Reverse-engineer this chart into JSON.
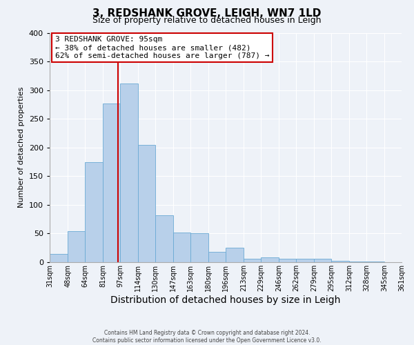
{
  "title": "3, REDSHANK GROVE, LEIGH, WN7 1LD",
  "subtitle": "Size of property relative to detached houses in Leigh",
  "xlabel": "Distribution of detached houses by size in Leigh",
  "ylabel": "Number of detached properties",
  "bin_labels": [
    "31sqm",
    "48sqm",
    "64sqm",
    "81sqm",
    "97sqm",
    "114sqm",
    "130sqm",
    "147sqm",
    "163sqm",
    "180sqm",
    "196sqm",
    "213sqm",
    "229sqm",
    "246sqm",
    "262sqm",
    "279sqm",
    "295sqm",
    "312sqm",
    "328sqm",
    "345sqm",
    "361sqm"
  ],
  "bin_edges": [
    31,
    48,
    64,
    81,
    97,
    114,
    130,
    147,
    163,
    180,
    196,
    213,
    229,
    246,
    262,
    279,
    295,
    312,
    328,
    345,
    361
  ],
  "bar_heights": [
    14,
    54,
    175,
    277,
    312,
    204,
    82,
    52,
    50,
    18,
    25,
    6,
    9,
    6,
    6,
    6,
    2,
    1,
    1,
    0
  ],
  "bar_color": "#b8d0ea",
  "bar_edge_color": "#6aaad4",
  "vline_x": 95,
  "vline_color": "#cc0000",
  "annotation_line1": "3 REDSHANK GROVE: 95sqm",
  "annotation_line2": "← 38% of detached houses are smaller (482)",
  "annotation_line3": "62% of semi-detached houses are larger (787) →",
  "annotation_box_edge_color": "#cc0000",
  "annotation_box_bg": "#ffffff",
  "ylim": [
    0,
    400
  ],
  "yticks": [
    0,
    50,
    100,
    150,
    200,
    250,
    300,
    350,
    400
  ],
  "bg_color": "#eef2f8",
  "footer_line1": "Contains HM Land Registry data © Crown copyright and database right 2024.",
  "footer_line2": "Contains public sector information licensed under the Open Government Licence v3.0.",
  "title_fontsize": 11,
  "subtitle_fontsize": 9,
  "xlabel_fontsize": 10,
  "ylabel_fontsize": 8,
  "tick_fontsize": 7,
  "annotation_fontsize": 8,
  "footer_fontsize": 5.5
}
